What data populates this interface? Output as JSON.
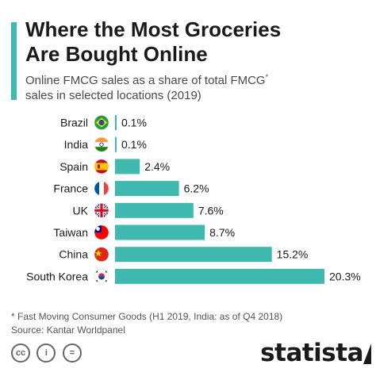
{
  "header": {
    "title_line1": "Where the Most Groceries",
    "title_line2": "Are Bought Online",
    "subtitle_line1": "Online FMCG sales as a share of total FMCG",
    "subtitle_sup": "*",
    "subtitle_line2": "sales in selected locations (2019)"
  },
  "footer": {
    "note": "* Fast Moving Consumer Goods (H1 2019, India: as of Q4 2018)",
    "source": "Source: Kantar Worldpanel",
    "logo": "statista",
    "cc_icons": [
      "cc-icon",
      "by-icon",
      "equals-icon"
    ],
    "cc_glyphs": [
      "cc",
      "i",
      "="
    ]
  },
  "colors": {
    "bar": "#3fb8b0",
    "accent": "#3fb8b0",
    "text": "#1a1a1a"
  },
  "chart_data": {
    "type": "bar",
    "orientation": "horizontal",
    "categories": [
      "Brazil",
      "India",
      "Spain",
      "France",
      "UK",
      "Taiwan",
      "China",
      "South Korea"
    ],
    "values": [
      0.1,
      0.1,
      2.4,
      6.2,
      7.6,
      8.7,
      15.2,
      20.3
    ],
    "labels": [
      "0.1%",
      "0.1%",
      "2.4%",
      "6.2%",
      "7.6%",
      "8.7%",
      "15.2%",
      "20.3%"
    ],
    "flags": [
      "brazil-flag-icon",
      "india-flag-icon",
      "spain-flag-icon",
      "france-flag-icon",
      "uk-flag-icon",
      "taiwan-flag-icon",
      "china-flag-icon",
      "south-korea-flag-icon"
    ],
    "xlim": [
      0,
      20.3
    ],
    "grid": false,
    "legend": "none"
  }
}
